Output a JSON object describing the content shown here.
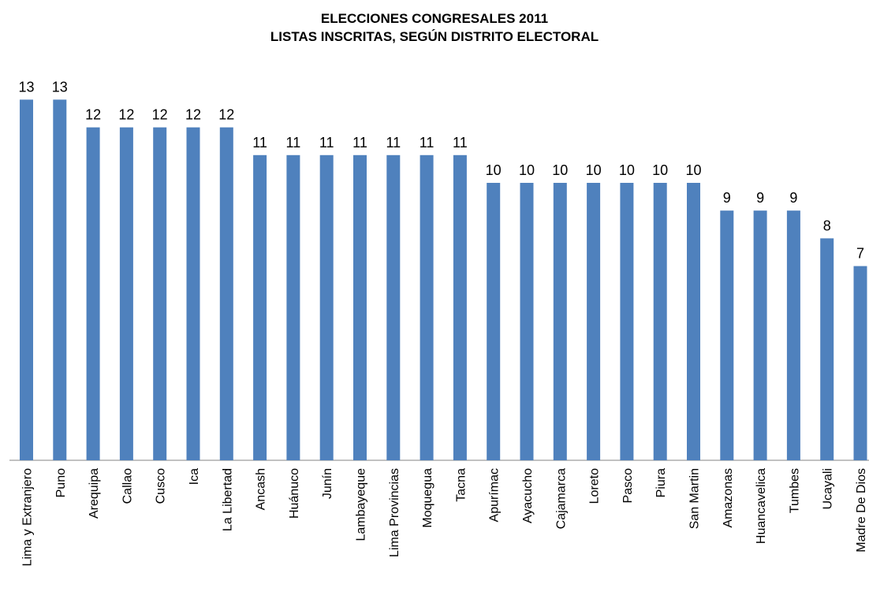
{
  "chart_data": {
    "type": "bar",
    "title": "ELECCIONES CONGRESALES 2011",
    "subtitle": "LISTAS INSCRITAS, SEGÚN DISTRITO ELECTORAL",
    "xlabel": "",
    "ylabel": "",
    "ylim": [
      0,
      13
    ],
    "grid": false,
    "legend": "none",
    "bar_color": "#4f81bd",
    "categories": [
      "Lima y Extranjero",
      "Puno",
      "Arequipa",
      "Callao",
      "Cusco",
      "Ica",
      "La Libertad",
      "Ancash",
      "Huánuco",
      "Junín",
      "Lambayeque",
      "Lima Provincias",
      "Moquegua",
      "Tacna",
      "Apurímac",
      "Ayacucho",
      "Cajamarca",
      "Loreto",
      "Pasco",
      "Piura",
      "San Martin",
      "Amazonas",
      "Huancavelica",
      "Tumbes",
      "Ucayali",
      "Madre De Dios"
    ],
    "values": [
      13,
      13,
      12,
      12,
      12,
      12,
      12,
      11,
      11,
      11,
      11,
      11,
      11,
      11,
      10,
      10,
      10,
      10,
      10,
      10,
      10,
      9,
      9,
      9,
      8,
      7
    ]
  }
}
